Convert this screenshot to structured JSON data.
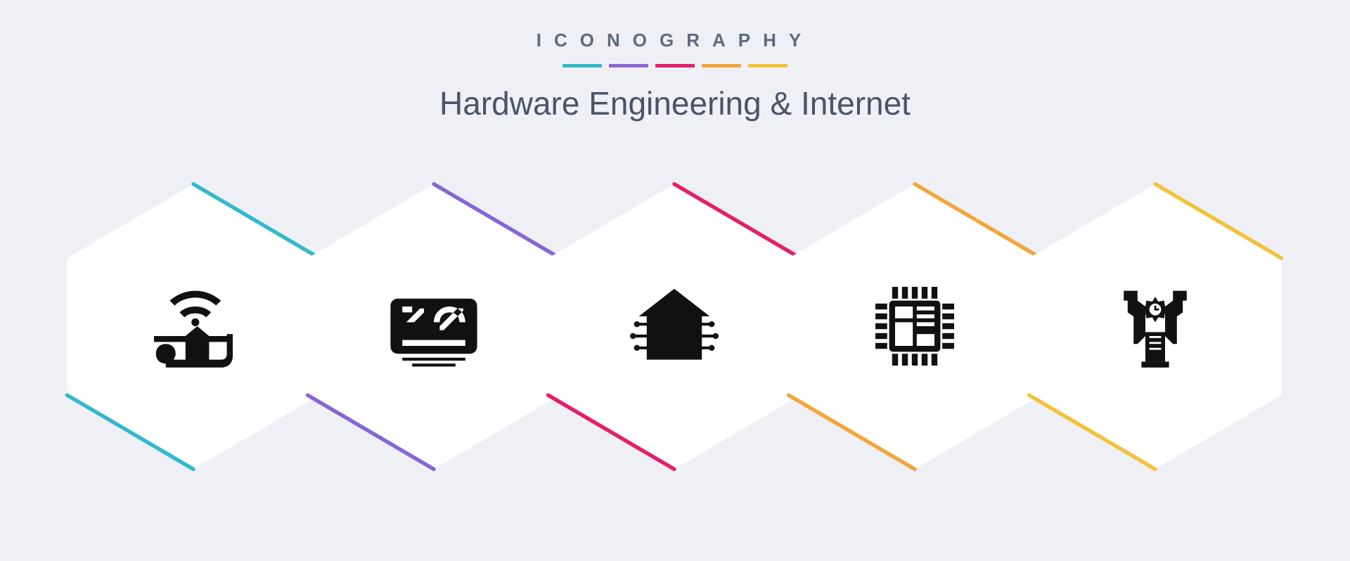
{
  "header": {
    "brand": "ICONOGRAPHY",
    "title": "Hardware Engineering & Internet",
    "brand_color": "#5f6a7d",
    "title_color": "#4a5467",
    "stripe_colors": [
      "#31b9cc",
      "#8865d6",
      "#e51e6b",
      "#f2a63b",
      "#f2c23b"
    ]
  },
  "layout": {
    "background": "#eef0f5",
    "hex_fill": "#ffffff",
    "icon_fill": "#111111",
    "spacing_left_start": 0,
    "hex_width": 390,
    "hex_overlap": 48
  },
  "hexes": [
    {
      "accent": "#31b9cc",
      "icon": "smart-home-wifi",
      "label": "smart-home-wifi-icon"
    },
    {
      "accent": "#8865d6",
      "icon": "circuit-board",
      "label": "circuit-board-icon"
    },
    {
      "accent": "#e51e6b",
      "icon": "smart-house",
      "label": "smart-house-icon"
    },
    {
      "accent": "#f2a63b",
      "icon": "cpu-chip",
      "label": "cpu-chip-icon"
    },
    {
      "accent": "#f2c23b",
      "icon": "micrometer-gear",
      "label": "micrometer-gear-icon"
    }
  ]
}
